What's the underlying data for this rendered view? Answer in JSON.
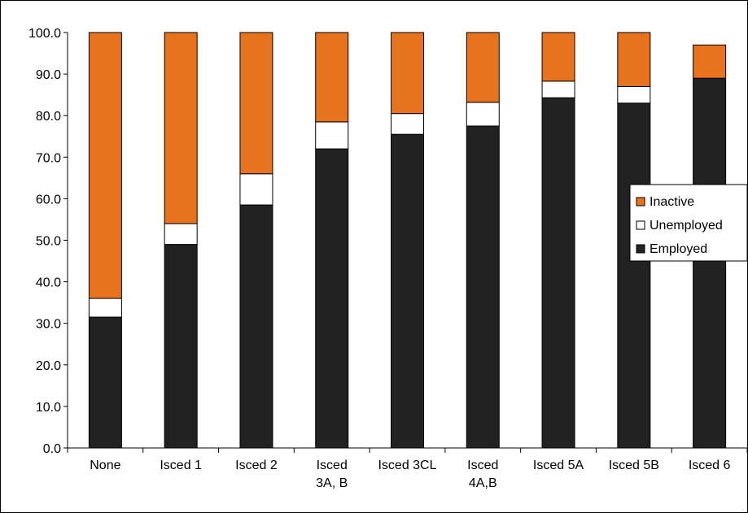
{
  "chart_data": {
    "type": "bar",
    "stacked": true,
    "categories": [
      [
        "None"
      ],
      [
        "Isced 1"
      ],
      [
        "Isced 2"
      ],
      [
        "Isced",
        "3A, B"
      ],
      [
        "Isced 3CL"
      ],
      [
        "Isced",
        "4A,B"
      ],
      [
        "Isced 5A"
      ],
      [
        "Isced 5B"
      ],
      [
        "Isced 6"
      ]
    ],
    "series": [
      {
        "name": "Employed",
        "color": "#222222",
        "values": [
          31.5,
          49.0,
          58.5,
          72.0,
          75.5,
          77.5,
          84.3,
          83.0,
          89.0
        ]
      },
      {
        "name": "Unemployed",
        "color": "#ffffff",
        "values": [
          4.5,
          5.0,
          7.5,
          6.5,
          5.0,
          5.7,
          4.0,
          4.0,
          0.0
        ]
      },
      {
        "name": "Inactive",
        "color": "#e8731f",
        "values": [
          64.0,
          46.0,
          34.0,
          21.5,
          19.5,
          16.8,
          11.7,
          13.0,
          8.0
        ]
      }
    ],
    "y_ticks": [
      "0.0",
      "10.0",
      "20.0",
      "30.0",
      "40.0",
      "50.0",
      "60.0",
      "70.0",
      "80.0",
      "90.0",
      "100.0"
    ],
    "ylim": [
      0,
      100
    ],
    "legend": {
      "position": "right",
      "order": [
        "Inactive",
        "Unemployed",
        "Employed"
      ]
    },
    "title": "",
    "xlabel": "",
    "ylabel": ""
  }
}
